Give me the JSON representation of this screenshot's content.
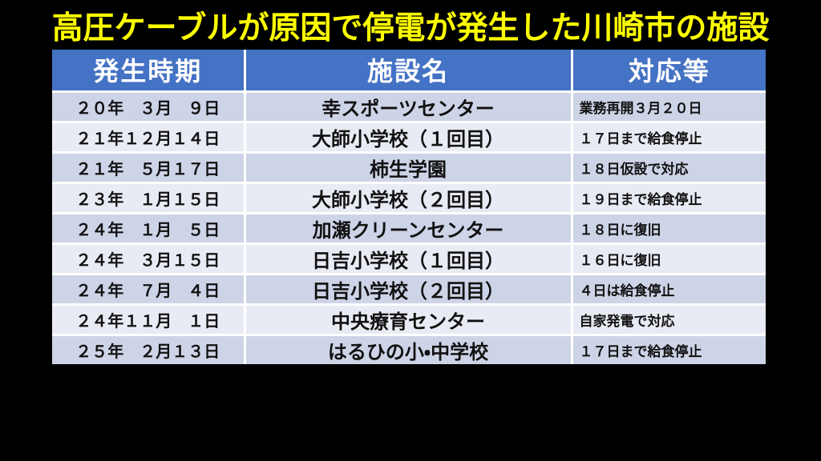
{
  "title": "高圧ケーブルが原因で停電が発生した川崎市の施設",
  "table": {
    "headers": [
      "発生時期",
      "施設名",
      "対応等"
    ],
    "rows": [
      {
        "date": "２０年　３月　９日",
        "facility": "幸スポーツセンター",
        "response": "業務再開３月２０日"
      },
      {
        "date": "２１年１２月１４日",
        "facility": "大師小学校（１回目）",
        "response": "１７日まで給食停止"
      },
      {
        "date": "２１年　５月１７日",
        "facility": "柿生学園",
        "response": "１８日仮設で対応"
      },
      {
        "date": "２３年　１月１５日",
        "facility": "大師小学校（２回目）",
        "response": "１９日まで給食停止"
      },
      {
        "date": "２４年　１月　５日",
        "facility": "加瀬クリーンセンター",
        "response": "１８日に復旧"
      },
      {
        "date": "２４年　３月１５日",
        "facility": "日吉小学校（１回目）",
        "response": "１６日に復旧"
      },
      {
        "date": "２４年　７月　４日",
        "facility": "日吉小学校（２回目）",
        "response": "４日は給食停止"
      },
      {
        "date": "２４年１１月　１日",
        "facility": "中央療育センター",
        "response": "自家発電で対応"
      },
      {
        "date": "２５年　２月１３日",
        "facility": "はるひの小・中学校",
        "response": "１７日まで給食停止"
      }
    ]
  },
  "colors": {
    "background": "#000000",
    "title_text": "#FFFF00",
    "header_background": "#4472C4",
    "header_text": "#FFFFFF",
    "row_odd": "#CED4E7",
    "row_even": "#E9EBF4",
    "cell_text": "#111111",
    "grid_lines": "#FFFFFF"
  }
}
